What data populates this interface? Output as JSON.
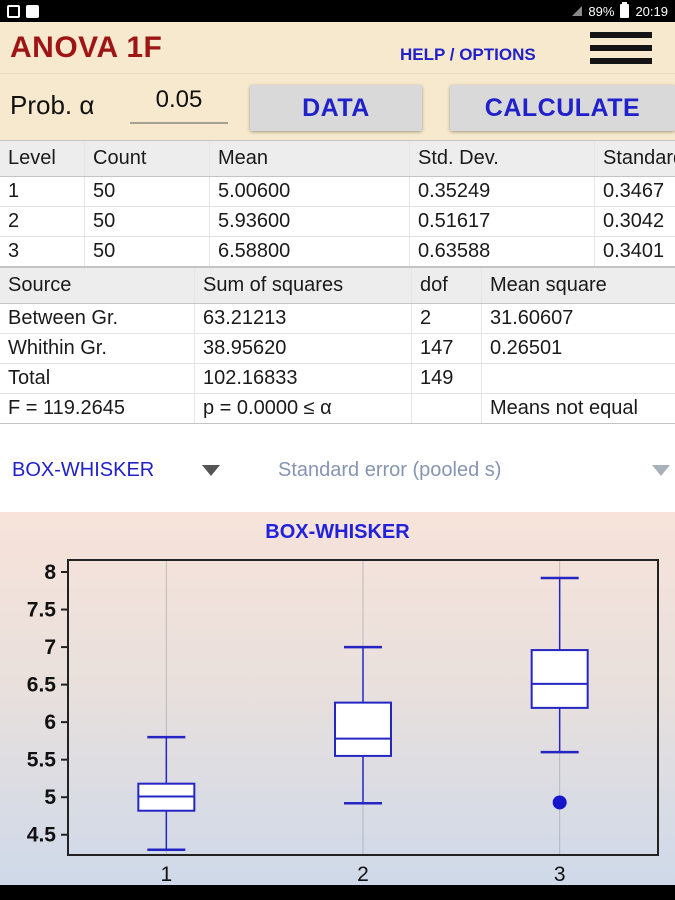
{
  "status_bar": {
    "battery": "89%",
    "time": "20:19"
  },
  "header": {
    "title": "ANOVA 1F",
    "help_options": "HELP / OPTIONS"
  },
  "controls": {
    "prob_label": "Prob. α",
    "alpha_value": "0.05",
    "data_button": "DATA",
    "calculate_button": "CALCULATE"
  },
  "stats_table": {
    "headers": [
      "Level",
      "Count",
      "Mean",
      "Std. Dev.",
      "Standard error"
    ],
    "rows": [
      [
        "1",
        "50",
        "5.00600",
        "0.35249",
        "0.3467"
      ],
      [
        "2",
        "50",
        "5.93600",
        "0.51617",
        "0.3042"
      ],
      [
        "3",
        "50",
        "6.58800",
        "0.63588",
        "0.3401"
      ]
    ]
  },
  "anova_table": {
    "headers": [
      "Source",
      "Sum of squares",
      "dof",
      "Mean square"
    ],
    "rows": [
      [
        "Between Gr.",
        "63.21213",
        "2",
        "31.60607"
      ],
      [
        "Whithin Gr.",
        "38.95620",
        "147",
        "0.26501"
      ],
      [
        "Total",
        "102.16833",
        "149",
        ""
      ],
      [
        "F = 119.2645",
        "p = 0.0000 ≤ α",
        "",
        "Means not equal"
      ]
    ]
  },
  "selectors": {
    "chart_type": "BOX-WHISKER",
    "error_type": "Standard error (pooled s)"
  },
  "chart_data": {
    "type": "boxplot",
    "title": "BOX-WHISKER",
    "categories": [
      "1",
      "2",
      "3"
    ],
    "y_ticks": [
      8,
      7.5,
      7,
      6.5,
      6,
      5.5,
      5,
      4.5
    ],
    "ylim": [
      4.23,
      8.16
    ],
    "grid": "vertical-category-lines",
    "series": [
      {
        "category": "1",
        "low": 4.3,
        "q1": 4.82,
        "median": 5.01,
        "q3": 5.18,
        "high": 5.8,
        "outliers": []
      },
      {
        "category": "2",
        "low": 4.92,
        "q1": 5.55,
        "median": 5.78,
        "q3": 6.26,
        "high": 7.0,
        "outliers": []
      },
      {
        "category": "3",
        "low": 5.6,
        "q1": 6.19,
        "median": 6.51,
        "q3": 6.96,
        "high": 7.92,
        "outliers": [
          4.93
        ]
      }
    ],
    "colors": {
      "box_stroke": "#2525c4",
      "box_fill": "#ffffff",
      "outlier": "#1515cc",
      "grid": "#9aa0a8",
      "frame": "#222222"
    }
  },
  "colors": {
    "topbar_bg": "#000000",
    "header_bg": "#f7e9cd",
    "title_red": "#9e1515",
    "accent_blue": "#2121cc",
    "button_bg": "#d9d9d9",
    "muted_blue": "#8695b2"
  }
}
